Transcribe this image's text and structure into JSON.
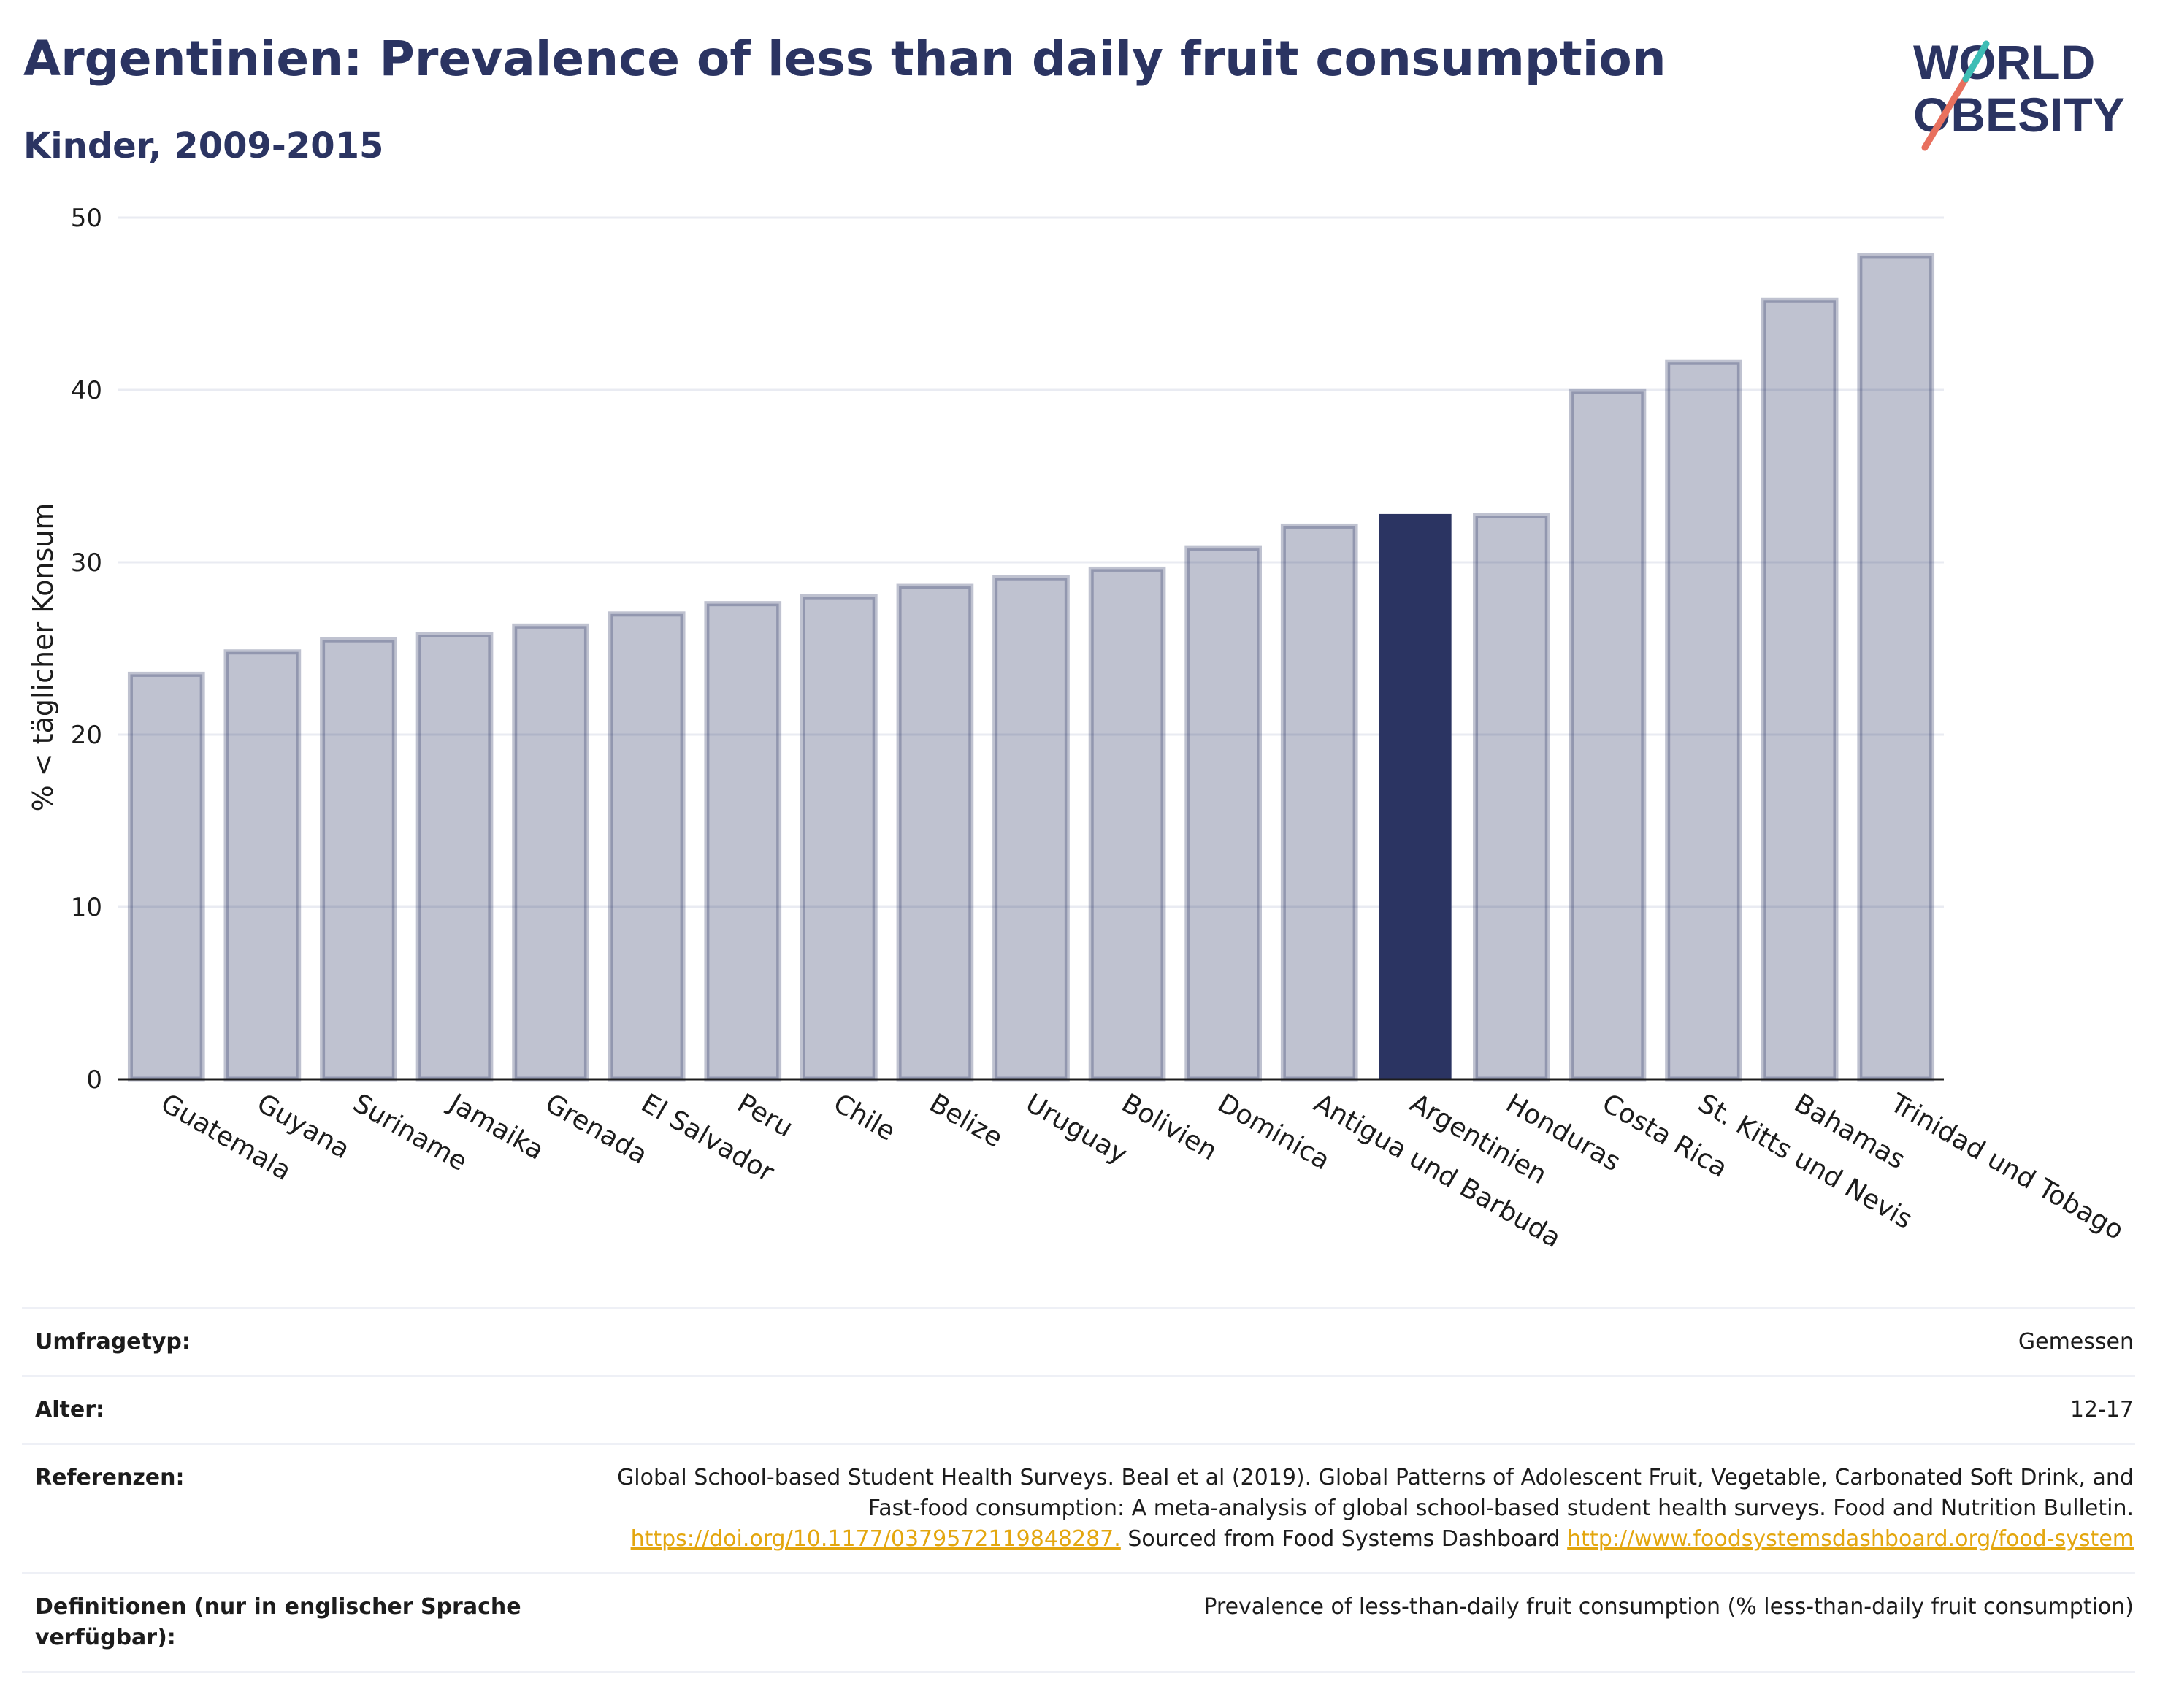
{
  "header": {
    "title": "Argentinien: Prevalence of less than daily fruit consumption",
    "subtitle": "Kinder, 2009-2015"
  },
  "logo": {
    "line1": "WORLD",
    "line2": "OBESITY",
    "text_color": "#2b3462",
    "slash_colors": [
      "#e8705e",
      "#3dbdb5"
    ]
  },
  "chart_data": {
    "type": "bar",
    "title": "Argentinien: Prevalence of less than daily fruit consumption",
    "subtitle": "Kinder, 2009-2015",
    "ylabel": "% < täglicher Konsum",
    "xlabel": "",
    "ylim": [
      0,
      50
    ],
    "yticks": [
      0,
      10,
      20,
      30,
      40,
      50
    ],
    "grid": true,
    "highlight": "Argentinien",
    "colors": {
      "bar": "#2b3462",
      "bar_muted_alpha": 0.3,
      "grid": "#e9ebf2"
    },
    "categories": [
      "Guatemala",
      "Guyana",
      "Suriname",
      "Jamaika",
      "Grenada",
      "El Salvador",
      "Peru",
      "Chile",
      "Belize",
      "Uruguay",
      "Bolivien",
      "Dominica",
      "Antigua und Barbuda",
      "Argentinien",
      "Honduras",
      "Costa Rica",
      "St. Kitts und Nevis",
      "Bahamas",
      "Trinidad und Tobago"
    ],
    "values": [
      23.5,
      24.8,
      25.5,
      25.8,
      26.3,
      27.0,
      27.6,
      28.0,
      28.6,
      29.1,
      29.6,
      30.8,
      32.1,
      32.8,
      32.7,
      39.9,
      41.6,
      45.2,
      47.8
    ]
  },
  "meta": {
    "survey_label": "Umfragetyp:",
    "survey_value": "Gemessen",
    "age_label": "Alter:",
    "age_value": "12-17",
    "refs_label": "Referenzen:",
    "refs_text1": "Global School-based Student Health Surveys. Beal et al (2019). Global Patterns of Adolescent Fruit, Vegetable, Carbonated Soft Drink, and Fast-food consumption: A meta-analysis of global school-based student health surveys. Food and Nutrition Bulletin.",
    "refs_link1": "https://doi.org/10.1177/0379572119848287.",
    "refs_text2": "Sourced from Food Systems Dashboard",
    "refs_link2": "http://www.foodsystemsdashboard.org/food-system",
    "defs_label": "Definitionen (nur in englischer Sprache verfügbar):",
    "defs_value": "Prevalence of less-than-daily fruit consumption (% less-than-daily fruit consumption)"
  }
}
